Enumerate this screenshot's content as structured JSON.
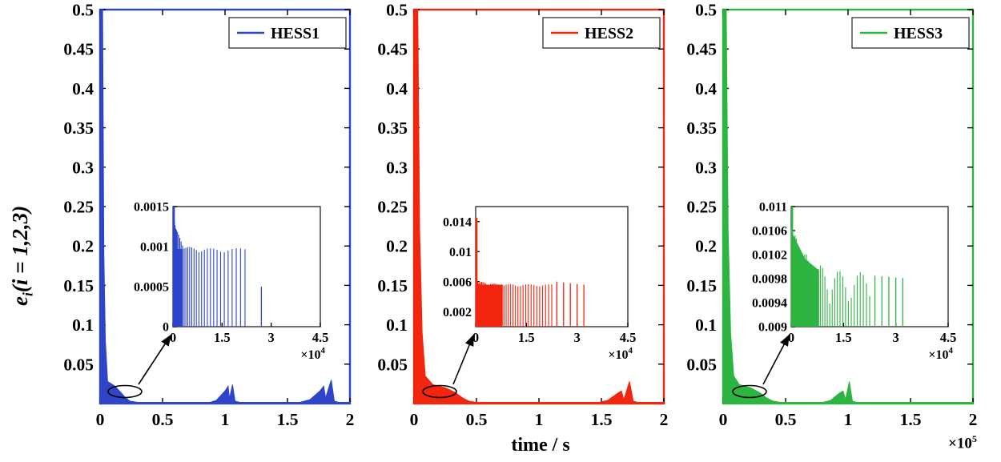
{
  "figure": {
    "background_color": "#ffffff",
    "y_axis_label": {
      "variable": "e",
      "subscript": "i",
      "expression": "(i = 1,2,3)"
    },
    "x_axis_label": "time / s",
    "x_axis_exponent": {
      "base": "×10",
      "power": "5"
    },
    "inset_exponent": {
      "base": "×10",
      "power": "4"
    }
  },
  "chart_data": [
    {
      "type": "line",
      "legend": "HESS1",
      "color": "#2f45c8",
      "x_range": [
        0,
        200000
      ],
      "y_range": [
        0,
        0.5
      ],
      "x_tick_values": [
        0,
        50000,
        100000,
        150000,
        200000
      ],
      "x_tick_labels": [
        "0",
        "0.5",
        "1",
        "1.5",
        "2"
      ],
      "y_tick_values": [
        0.05,
        0.1,
        0.15,
        0.2,
        0.25,
        0.3,
        0.35,
        0.4,
        0.45,
        0.5
      ],
      "y_tick_labels": [
        "0.05",
        "0.1",
        "0.15",
        "0.2",
        "0.25",
        "0.3",
        "0.35",
        "0.4",
        "0.45",
        "0.5"
      ],
      "envelope": [
        [
          0,
          0.5
        ],
        [
          2000,
          0.5
        ],
        [
          3000,
          0.19
        ],
        [
          4200,
          0.08
        ],
        [
          6000,
          0.028
        ],
        [
          12000,
          0.022
        ],
        [
          16000,
          0.015
        ],
        [
          20000,
          0.008
        ],
        [
          24000,
          0.003
        ],
        [
          30000,
          0.0015
        ],
        [
          88000,
          0.0015
        ],
        [
          93000,
          0.004
        ],
        [
          100000,
          0.016
        ],
        [
          102500,
          0.022
        ],
        [
          103500,
          0.006
        ],
        [
          106000,
          0.024
        ],
        [
          108000,
          0.003
        ],
        [
          112000,
          0.0015
        ],
        [
          160000,
          0.0015
        ],
        [
          168000,
          0.005
        ],
        [
          176000,
          0.016
        ],
        [
          179000,
          0.022
        ],
        [
          180500,
          0.007
        ],
        [
          185000,
          0.03
        ],
        [
          187500,
          0.003
        ],
        [
          191000,
          0.0015
        ],
        [
          200000,
          0.0015
        ]
      ],
      "inset": {
        "x_range": [
          0,
          45000
        ],
        "y_range": [
          0,
          0.0015
        ],
        "baseline": 0,
        "x_tick_values": [
          0,
          15000,
          30000,
          45000
        ],
        "x_tick_labels": [
          "0",
          "1.5",
          "3",
          "4.5"
        ],
        "y_tick_values": [
          0,
          0.0005,
          0.001,
          0.0015
        ],
        "y_tick_labels": [
          "0",
          "0.0005",
          "0.001",
          "0.0015"
        ],
        "initial_spike": {
          "x": 250,
          "height": 0.0015
        },
        "spike_spec": {
          "count": 36,
          "x_end": 22000,
          "power": 2.2,
          "amp_base": 0.00097,
          "amp_extra": 0.00053,
          "decay": 1500,
          "solid_band_x_end": 3000
        },
        "tail_spikes": [
          [
            27000,
            0.0005
          ]
        ]
      }
    },
    {
      "type": "line",
      "legend": "HESS2",
      "color": "#f2250f",
      "x_range": [
        0,
        200000
      ],
      "y_range": [
        0,
        0.5
      ],
      "x_tick_values": [
        0,
        50000,
        100000,
        150000,
        200000
      ],
      "x_tick_labels": [
        "0",
        "0.5",
        "1",
        "1.5",
        "2"
      ],
      "y_tick_values": [
        0.05,
        0.1,
        0.15,
        0.2,
        0.25,
        0.3,
        0.35,
        0.4,
        0.45,
        0.5
      ],
      "y_tick_labels": [
        "0.05",
        "0.1",
        "0.15",
        "0.2",
        "0.25",
        "0.3",
        "0.35",
        "0.4",
        "0.45",
        "0.5"
      ],
      "envelope": [
        [
          0,
          0.5
        ],
        [
          3000,
          0.5
        ],
        [
          4500,
          0.22
        ],
        [
          6500,
          0.09
        ],
        [
          9000,
          0.035
        ],
        [
          15000,
          0.024
        ],
        [
          25000,
          0.02
        ],
        [
          33000,
          0.014
        ],
        [
          39000,
          0.007
        ],
        [
          44000,
          0.003
        ],
        [
          50000,
          0.0015
        ],
        [
          148000,
          0.0015
        ],
        [
          155000,
          0.004
        ],
        [
          163000,
          0.013
        ],
        [
          166000,
          0.016
        ],
        [
          168000,
          0.005
        ],
        [
          172500,
          0.028
        ],
        [
          175500,
          0.003
        ],
        [
          179000,
          0.0015
        ],
        [
          200000,
          0.0015
        ]
      ],
      "inset": {
        "x_range": [
          0,
          45000
        ],
        "y_range": [
          0,
          0.016
        ],
        "baseline": 0,
        "x_tick_values": [
          0,
          15000,
          30000,
          45000
        ],
        "x_tick_labels": [
          "0",
          "1.5",
          "3",
          "4.5"
        ],
        "y_tick_values": [
          0.002,
          0.006,
          0.01,
          0.014
        ],
        "y_tick_labels": [
          "0.002",
          "0.006",
          "0.01",
          "0.014"
        ],
        "initial_spike": {
          "x": 250,
          "height": 0.0145
        },
        "spike_spec": {
          "count": 40,
          "x_end": 22500,
          "power": 1.6,
          "amp_base": 0.0056,
          "amp_extra": 0.0006,
          "decay": 3000,
          "solid_band_x_end": 8000
        },
        "tail_spikes": [
          [
            24000,
            0.006
          ],
          [
            26000,
            0.0059
          ],
          [
            28000,
            0.0058
          ],
          [
            30000,
            0.0057
          ],
          [
            32000,
            0.0056
          ]
        ]
      }
    },
    {
      "type": "line",
      "legend": "HESS3",
      "color": "#2eb440",
      "x_range": [
        0,
        200000
      ],
      "y_range": [
        0,
        0.5
      ],
      "x_tick_values": [
        0,
        50000,
        100000,
        150000,
        200000
      ],
      "x_tick_labels": [
        "0",
        "0.5",
        "1",
        "1.5",
        "2"
      ],
      "y_tick_values": [
        0.05,
        0.1,
        0.15,
        0.2,
        0.25,
        0.3,
        0.35,
        0.4,
        0.45,
        0.5
      ],
      "y_tick_labels": [
        "0.05",
        "0.1",
        "0.15",
        "0.2",
        "0.25",
        "0.3",
        "0.35",
        "0.4",
        "0.45",
        "0.5"
      ],
      "envelope": [
        [
          0,
          0.5
        ],
        [
          2500,
          0.5
        ],
        [
          4000,
          0.22
        ],
        [
          6000,
          0.09
        ],
        [
          8500,
          0.035
        ],
        [
          13000,
          0.024
        ],
        [
          22000,
          0.02
        ],
        [
          29000,
          0.014
        ],
        [
          35000,
          0.007
        ],
        [
          40000,
          0.003
        ],
        [
          46000,
          0.0015
        ],
        [
          80000,
          0.0015
        ],
        [
          86000,
          0.004
        ],
        [
          93000,
          0.013
        ],
        [
          96000,
          0.016
        ],
        [
          98000,
          0.005
        ],
        [
          101000,
          0.028
        ],
        [
          103500,
          0.003
        ],
        [
          107000,
          0.0015
        ],
        [
          200000,
          0.0015
        ]
      ],
      "inset": {
        "x_range": [
          0,
          45000
        ],
        "y_range": [
          0.009,
          0.011
        ],
        "baseline": 0.009,
        "x_tick_values": [
          0,
          15000,
          30000,
          45000
        ],
        "x_tick_labels": [
          "0",
          "1.5",
          "3",
          "4.5"
        ],
        "y_tick_values": [
          0.009,
          0.0094,
          0.0098,
          0.0102,
          0.0106,
          0.011
        ],
        "y_tick_labels": [
          "0.009",
          "0.0094",
          "0.0098",
          "0.0102",
          "0.0106",
          "0.011"
        ],
        "initial_spike": {
          "x": 250,
          "height": 0.011
        },
        "spike_spec": {
          "count": 40,
          "x_end": 22500,
          "power": 1.6,
          "amp_base": 0.0098,
          "amp_extra": 0.0008,
          "decay": 4500,
          "solid_band_x_end": 8000
        },
        "tail_spikes": [
          [
            24000,
            0.00985
          ],
          [
            26000,
            0.00984
          ],
          [
            28000,
            0.00983
          ],
          [
            30000,
            0.00982
          ],
          [
            32000,
            0.00981
          ]
        ]
      }
    }
  ]
}
